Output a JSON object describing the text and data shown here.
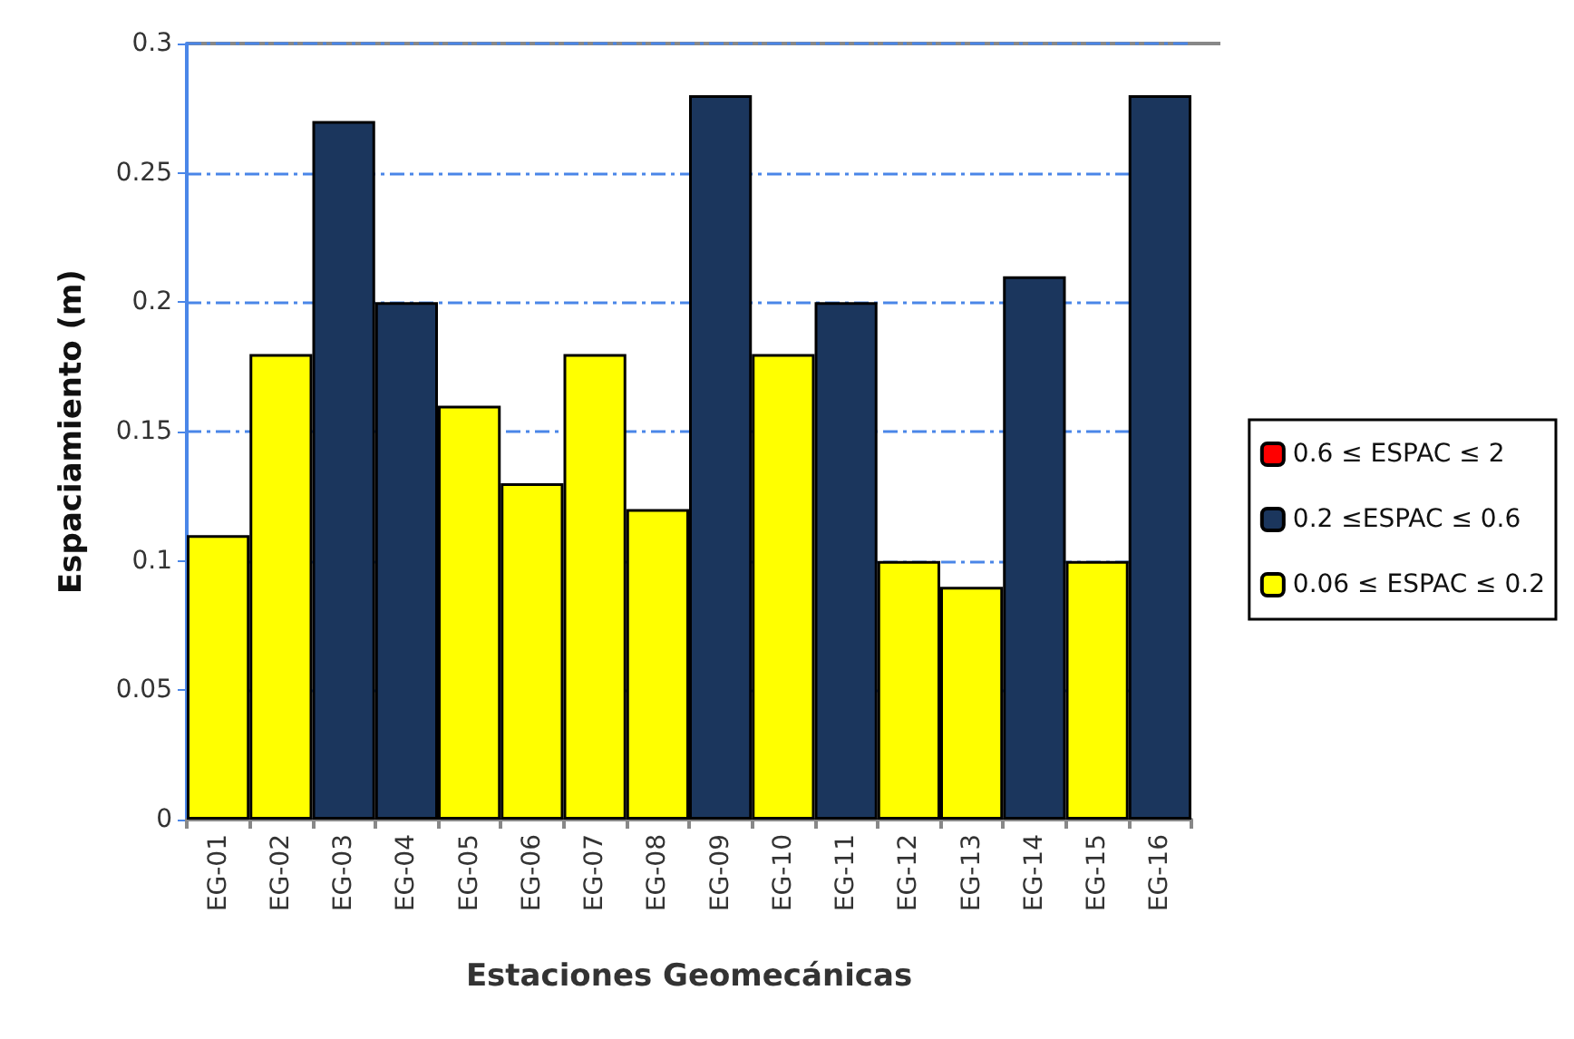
{
  "chart_data": {
    "type": "bar",
    "xlabel": "Estaciones Geomecánicas",
    "ylabel": "Espaciamiento (m)",
    "categories": [
      "EG-01",
      "EG-02",
      "EG-03",
      "EG-04",
      "EG-05",
      "EG-06",
      "EG-07",
      "EG-08",
      "EG-09",
      "EG-10",
      "EG-11",
      "EG-12",
      "EG-13",
      "EG-14",
      "EG-15",
      "EG-16"
    ],
    "stacked": true,
    "series": [
      {
        "name": "0.6 ≤ ESPAC ≤ 2",
        "color": "#ff0000",
        "values": [
          null,
          null,
          null,
          null,
          null,
          null,
          null,
          null,
          null,
          null,
          null,
          null,
          null,
          null,
          null,
          null
        ]
      },
      {
        "name": "0.2 ≤ESPAC ≤ 0.6",
        "color": "#1b365d",
        "values": [
          null,
          null,
          0.27,
          0.2,
          null,
          null,
          null,
          null,
          0.28,
          null,
          0.2,
          null,
          null,
          0.21,
          null,
          0.28
        ]
      },
      {
        "name": "0.06 ≤ ESPAC ≤ 0.2",
        "color": "#ffff00",
        "values": [
          0.11,
          0.18,
          null,
          null,
          0.16,
          0.13,
          0.18,
          0.12,
          null,
          0.18,
          null,
          0.1,
          0.09,
          null,
          0.1,
          null
        ]
      }
    ],
    "ylim": [
      0,
      0.3
    ],
    "yticks": [
      0,
      0.05,
      0.1,
      0.15,
      0.2,
      0.25,
      0.3
    ],
    "grid": "y",
    "legend": "right"
  }
}
